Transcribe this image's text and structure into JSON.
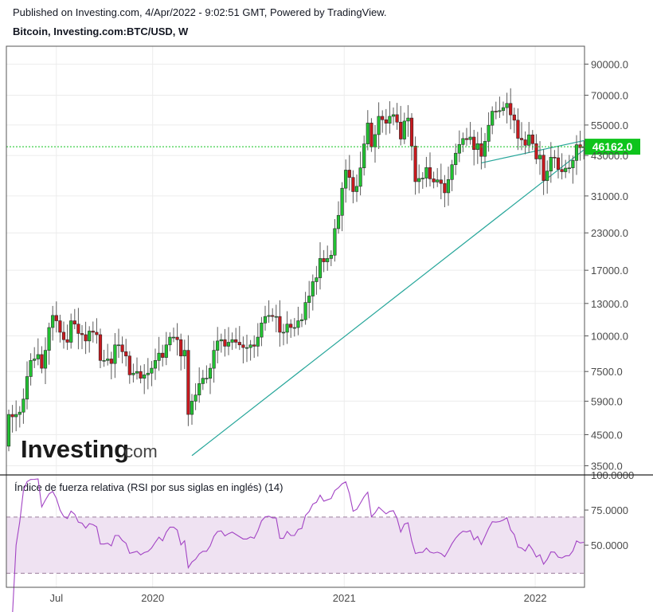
{
  "header": {
    "published": "Published on Investing.com, 4/Apr/2022 - 9:02:51 GMT, Powered by TradingView.",
    "symbol": "Bitcoin, Investing.com:BTC/USD, W"
  },
  "watermark": {
    "brand": "Investing",
    "suffix": ".com"
  },
  "colors": {
    "up": "#22c332",
    "down": "#c8191e",
    "wick": "#5b5b5b",
    "trend": "#26a69a",
    "rsi": "#a243c4",
    "rsi_band": "#efe2f2",
    "last_price_bg": "#0ec41c"
  },
  "chart_data": [
    {
      "type": "candlestick",
      "title": "",
      "scale": "log",
      "ylim": [
        3250,
        104000
      ],
      "price_ticks": [
        90000,
        70000,
        55000,
        43000,
        31000,
        23000,
        17000,
        13000,
        10000,
        7500,
        5900,
        4500,
        3500
      ],
      "price_tick_labels": [
        "90000.0",
        "70000.0",
        "55000.0",
        "43000.0",
        "31000.0",
        "23000.0",
        "17000.0",
        "13000.0",
        "10000.0",
        "7500.0",
        "5900.0",
        "4500.0",
        "3500.0"
      ],
      "last_price": 46162,
      "last_price_label": "46162.0",
      "x_labels": [
        {
          "label": "Jul",
          "date": "2019-07-01"
        },
        {
          "label": "2020",
          "date": "2020-01-01"
        },
        {
          "label": "2021",
          "date": "2021-01-01"
        },
        {
          "label": "2022",
          "date": "2022-01-01"
        }
      ],
      "trendlines": [
        {
          "from": [
            "2020-03-16",
            3800
          ],
          "to": [
            "2022-04-04",
            45000
          ]
        },
        {
          "from": [
            "2021-09-20",
            40500
          ],
          "to": [
            "2022-04-04",
            48500
          ]
        }
      ],
      "candles": [
        [
          "2019-04-01",
          4100,
          5300
        ],
        [
          "2019-04-08",
          5300,
          5200
        ],
        [
          "2019-04-15",
          5200,
          5300
        ],
        [
          "2019-04-22",
          5300,
          5400
        ],
        [
          "2019-04-29",
          5400,
          6000
        ],
        [
          "2019-05-06",
          6000,
          7200
        ],
        [
          "2019-05-13",
          7200,
          8200
        ],
        [
          "2019-05-20",
          8200,
          8300
        ],
        [
          "2019-05-27",
          8300,
          8600
        ],
        [
          "2019-06-03",
          8600,
          7700
        ],
        [
          "2019-06-10",
          7700,
          8900
        ],
        [
          "2019-06-17",
          8900,
          10700
        ],
        [
          "2019-06-24",
          10700,
          11800
        ],
        [
          "2019-07-01",
          11800,
          11300
        ],
        [
          "2019-07-08",
          11300,
          10300
        ],
        [
          "2019-07-15",
          10300,
          9700
        ],
        [
          "2019-07-22",
          9700,
          9500
        ],
        [
          "2019-07-29",
          9500,
          11300
        ],
        [
          "2019-08-05",
          11300,
          11000
        ],
        [
          "2019-08-12",
          11000,
          10200
        ],
        [
          "2019-08-19",
          10200,
          10100
        ],
        [
          "2019-08-26",
          10100,
          9600
        ],
        [
          "2019-09-02",
          9600,
          10400
        ],
        [
          "2019-09-09",
          10400,
          10300
        ],
        [
          "2019-09-16",
          10300,
          10100
        ],
        [
          "2019-09-23",
          10100,
          8200
        ],
        [
          "2019-09-30",
          8200,
          8200
        ],
        [
          "2019-10-07",
          8200,
          8300
        ],
        [
          "2019-10-14",
          8300,
          8000
        ],
        [
          "2019-10-21",
          8000,
          9300
        ],
        [
          "2019-10-28",
          9300,
          9300
        ],
        [
          "2019-11-04",
          9300,
          8800
        ],
        [
          "2019-11-11",
          8800,
          8500
        ],
        [
          "2019-11-18",
          8500,
          7300
        ],
        [
          "2019-11-25",
          7300,
          7400
        ],
        [
          "2019-12-02",
          7400,
          7500
        ],
        [
          "2019-12-09",
          7500,
          7100
        ],
        [
          "2019-12-16",
          7100,
          7300
        ],
        [
          "2019-12-23",
          7300,
          7400
        ],
        [
          "2019-12-30",
          7400,
          7700
        ],
        [
          "2020-01-06",
          7700,
          8200
        ],
        [
          "2020-01-13",
          8200,
          8700
        ],
        [
          "2020-01-20",
          8700,
          8400
        ],
        [
          "2020-01-27",
          8400,
          9300
        ],
        [
          "2020-02-03",
          9300,
          9900
        ],
        [
          "2020-02-10",
          9900,
          9900
        ],
        [
          "2020-02-17",
          9900,
          9700
        ],
        [
          "2020-02-24",
          9700,
          8500
        ],
        [
          "2020-03-02",
          8500,
          8900
        ],
        [
          "2020-03-09",
          8900,
          5300
        ],
        [
          "2020-03-16",
          5300,
          5900
        ],
        [
          "2020-03-23",
          5900,
          6200
        ],
        [
          "2020-03-30",
          6200,
          6800
        ],
        [
          "2020-04-06",
          6800,
          7100
        ],
        [
          "2020-04-13",
          7100,
          7100
        ],
        [
          "2020-04-20",
          7100,
          7700
        ],
        [
          "2020-04-27",
          7700,
          8900
        ],
        [
          "2020-05-04",
          8900,
          9600
        ],
        [
          "2020-05-11",
          9600,
          9700
        ],
        [
          "2020-05-18",
          9700,
          9200
        ],
        [
          "2020-05-25",
          9200,
          9500
        ],
        [
          "2020-06-01",
          9500,
          9700
        ],
        [
          "2020-06-08",
          9700,
          9500
        ],
        [
          "2020-06-15",
          9500,
          9300
        ],
        [
          "2020-06-22",
          9300,
          9100
        ],
        [
          "2020-06-29",
          9100,
          9100
        ],
        [
          "2020-07-06",
          9100,
          9300
        ],
        [
          "2020-07-13",
          9300,
          9200
        ],
        [
          "2020-07-20",
          9200,
          9900
        ],
        [
          "2020-07-27",
          9900,
          11100
        ],
        [
          "2020-08-03",
          11100,
          11700
        ],
        [
          "2020-08-10",
          11700,
          11800
        ],
        [
          "2020-08-17",
          11800,
          11700
        ],
        [
          "2020-08-24",
          11700,
          11700
        ],
        [
          "2020-08-31",
          11700,
          10300
        ],
        [
          "2020-09-07",
          10300,
          10300
        ],
        [
          "2020-09-14",
          10300,
          11000
        ],
        [
          "2020-09-21",
          11000,
          10700
        ],
        [
          "2020-09-28",
          10700,
          10700
        ],
        [
          "2020-10-05",
          10700,
          11300
        ],
        [
          "2020-10-12",
          11300,
          11400
        ],
        [
          "2020-10-19",
          11400,
          13100
        ],
        [
          "2020-10-26",
          13100,
          13800
        ],
        [
          "2020-11-02",
          13800,
          15500
        ],
        [
          "2020-11-09",
          15500,
          16000
        ],
        [
          "2020-11-16",
          16000,
          18700
        ],
        [
          "2020-11-23",
          18700,
          18200
        ],
        [
          "2020-11-30",
          18200,
          18700
        ],
        [
          "2020-12-07",
          18700,
          19200
        ],
        [
          "2020-12-14",
          19200,
          23800
        ],
        [
          "2020-12-21",
          23800,
          26500
        ],
        [
          "2020-12-28",
          26500,
          33000
        ],
        [
          "2021-01-04",
          33000,
          38200
        ],
        [
          "2021-01-11",
          38200,
          36000
        ],
        [
          "2021-01-18",
          36000,
          32100
        ],
        [
          "2021-01-25",
          32100,
          33500
        ],
        [
          "2021-02-01",
          33500,
          38900
        ],
        [
          "2021-02-08",
          38900,
          47200
        ],
        [
          "2021-02-15",
          47200,
          55900
        ],
        [
          "2021-02-22",
          55900,
          46100
        ],
        [
          "2021-03-01",
          46100,
          50900
        ],
        [
          "2021-03-08",
          50900,
          59000
        ],
        [
          "2021-03-15",
          59000,
          57400
        ],
        [
          "2021-03-22",
          57400,
          55800
        ],
        [
          "2021-03-29",
          55800,
          59000
        ],
        [
          "2021-04-05",
          59000,
          59800
        ],
        [
          "2021-04-12",
          59800,
          56300
        ],
        [
          "2021-04-19",
          56300,
          49100
        ],
        [
          "2021-04-26",
          49100,
          56800
        ],
        [
          "2021-05-03",
          56800,
          58200
        ],
        [
          "2021-05-10",
          58200,
          46400
        ],
        [
          "2021-05-17",
          46400,
          34800
        ],
        [
          "2021-05-24",
          34800,
          35700
        ],
        [
          "2021-05-31",
          35700,
          35800
        ],
        [
          "2021-06-07",
          35800,
          39000
        ],
        [
          "2021-06-14",
          39000,
          35600
        ],
        [
          "2021-06-21",
          35600,
          34700
        ],
        [
          "2021-06-28",
          34700,
          35300
        ],
        [
          "2021-07-05",
          35300,
          34300
        ],
        [
          "2021-07-12",
          34300,
          31800
        ],
        [
          "2021-07-19",
          31800,
          35400
        ],
        [
          "2021-07-26",
          35400,
          39900
        ],
        [
          "2021-08-02",
          39900,
          43800
        ],
        [
          "2021-08-09",
          43800,
          47000
        ],
        [
          "2021-08-16",
          47000,
          49300
        ],
        [
          "2021-08-23",
          49300,
          48900
        ],
        [
          "2021-08-30",
          48900,
          49900
        ],
        [
          "2021-09-06",
          49900,
          45100
        ],
        [
          "2021-09-13",
          45100,
          47300
        ],
        [
          "2021-09-20",
          47300,
          42700
        ],
        [
          "2021-09-27",
          42700,
          48200
        ],
        [
          "2021-10-04",
          48200,
          54900
        ],
        [
          "2021-10-11",
          54900,
          61500
        ],
        [
          "2021-10-18",
          61500,
          61300
        ],
        [
          "2021-10-25",
          61300,
          61800
        ],
        [
          "2021-11-01",
          61800,
          63300
        ],
        [
          "2021-11-08",
          63300,
          65500
        ],
        [
          "2021-11-15",
          65500,
          59700
        ],
        [
          "2021-11-22",
          59700,
          57200
        ],
        [
          "2021-11-29",
          57200,
          49400
        ],
        [
          "2021-12-06",
          49400,
          48800
        ],
        [
          "2021-12-13",
          48800,
          46700
        ],
        [
          "2021-12-20",
          46700,
          50800
        ],
        [
          "2021-12-27",
          50800,
          47300
        ],
        [
          "2022-01-03",
          47300,
          41800
        ],
        [
          "2022-01-10",
          41800,
          43100
        ],
        [
          "2022-01-17",
          43100,
          35100
        ],
        [
          "2022-01-24",
          35100,
          37900
        ],
        [
          "2022-01-31",
          37900,
          42400
        ],
        [
          "2022-02-07",
          42400,
          42200
        ],
        [
          "2022-02-14",
          42200,
          38400
        ],
        [
          "2022-02-21",
          38400,
          37700
        ],
        [
          "2022-02-28",
          37700,
          38800
        ],
        [
          "2022-03-07",
          38800,
          38900
        ],
        [
          "2022-03-14",
          38900,
          41300
        ],
        [
          "2022-03-21",
          41300,
          46900
        ],
        [
          "2022-03-28",
          46900,
          45800
        ],
        [
          "2022-04-04",
          45800,
          46162
        ]
      ]
    },
    {
      "type": "line",
      "title": "Índice de fuerza relativa (RSI por sus siglas en inglés) (14)",
      "ylim": [
        20,
        100
      ],
      "y_ticks": [
        100,
        75,
        50
      ],
      "y_tick_labels": [
        "100.0000",
        "75.0000",
        "50.0000"
      ],
      "bands": [
        30,
        70
      ],
      "derived_from": "candles close, 14-period Wilder RSI"
    }
  ]
}
